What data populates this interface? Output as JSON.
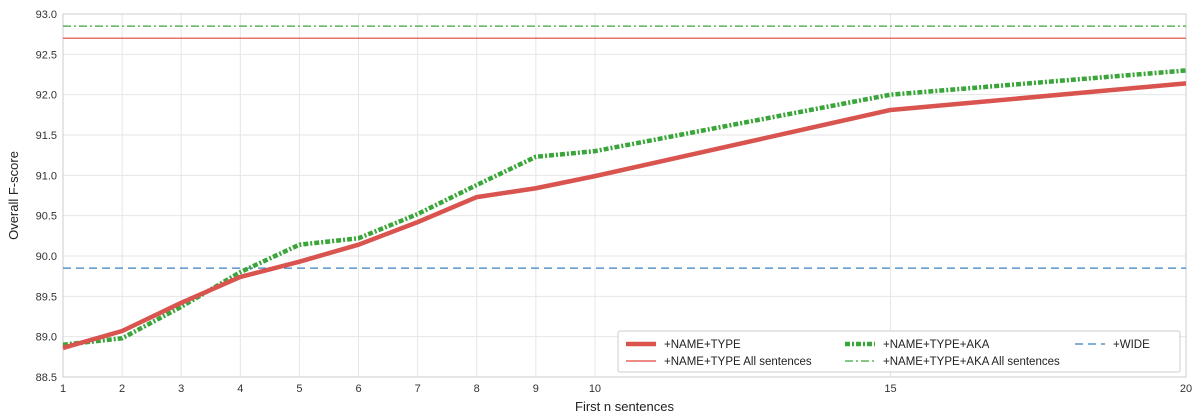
{
  "chart_data": {
    "type": "line",
    "xlabel": "First n sentences",
    "ylabel": "Overall F-score",
    "xlim": [
      1,
      20
    ],
    "ylim": [
      88.5,
      93.0
    ],
    "x_ticks": [
      1,
      2,
      3,
      4,
      5,
      6,
      7,
      8,
      9,
      10,
      15,
      20
    ],
    "y_ticks": [
      "88.5",
      "89.0",
      "89.5",
      "90.0",
      "90.5",
      "91.0",
      "91.5",
      "92.0",
      "92.5",
      "93.0"
    ],
    "grid": true,
    "legend_position": "bottom-right",
    "series": [
      {
        "name": "+NAME+TYPE",
        "color": "#d9534f",
        "style": "solid-thick",
        "x": [
          1,
          2,
          3,
          4,
          5,
          6,
          7,
          8,
          9,
          10,
          15,
          20
        ],
        "y": [
          88.86,
          89.07,
          89.42,
          89.74,
          89.93,
          90.14,
          90.42,
          90.73,
          90.84,
          90.99,
          91.81,
          92.14
        ]
      },
      {
        "name": "+NAME+TYPE+AKA",
        "color": "#3aa63a",
        "style": "dashdot-thick",
        "x": [
          1,
          2,
          3,
          4,
          5,
          6,
          7,
          8,
          9,
          10,
          15,
          20
        ],
        "y": [
          88.9,
          88.98,
          89.37,
          89.8,
          90.14,
          90.22,
          90.52,
          90.88,
          91.23,
          91.3,
          92.0,
          92.3
        ]
      },
      {
        "name": "+WIDE",
        "color": "#3f7fc0",
        "style": "dashed",
        "x": [
          1,
          20
        ],
        "y": [
          89.85,
          89.85
        ]
      },
      {
        "name": "+NAME+TYPE All sentences",
        "color": "#e0453c",
        "style": "solid-thin",
        "x": [
          1,
          20
        ],
        "y": [
          92.7,
          92.7
        ]
      },
      {
        "name": "+NAME+TYPE+AKA All sentences",
        "color": "#3aa63a",
        "style": "dashdot-thin",
        "x": [
          1,
          20
        ],
        "y": [
          92.85,
          92.85
        ]
      }
    ],
    "legend_order": [
      "+NAME+TYPE",
      "+NAME+TYPE+AKA",
      "+WIDE",
      "+NAME+TYPE All sentences",
      "+NAME+TYPE+AKA All sentences"
    ]
  }
}
